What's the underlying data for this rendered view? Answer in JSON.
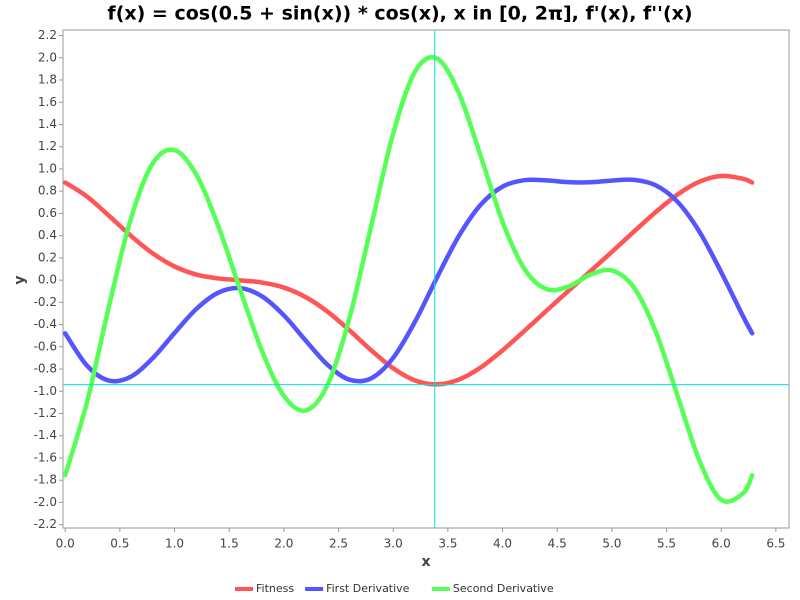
{
  "chart_data": {
    "type": "line",
    "title": "f(x) = cos(0.5 + sin(x)) * cos(x), x in [0, 2π], f'(x), f''(x)",
    "x_label": "x",
    "y_label": "y",
    "x": [
      0,
      0.2,
      0.4,
      0.6,
      0.8,
      1.0,
      1.2,
      1.4,
      1.6,
      1.8,
      2.0,
      2.2,
      2.4,
      2.6,
      2.8,
      3.0,
      3.2,
      3.4,
      3.6,
      3.8,
      4.0,
      4.2,
      4.4,
      4.6,
      4.8,
      5.0,
      5.2,
      5.4,
      5.6,
      5.8,
      6.0,
      6.2,
      6.283
    ],
    "series": [
      {
        "name": "Fitness",
        "color": "#ff5555",
        "values": [
          0.878,
          0.751,
          0.58,
          0.4,
          0.241,
          0.123,
          0.05,
          0.015,
          -0.002,
          -0.022,
          -0.067,
          -0.153,
          -0.284,
          -0.452,
          -0.632,
          -0.793,
          -0.903,
          -0.938,
          -0.895,
          -0.786,
          -0.632,
          -0.457,
          -0.277,
          -0.099,
          0.077,
          0.254,
          0.435,
          0.611,
          0.769,
          0.885,
          0.937,
          0.911,
          0.878
        ]
      },
      {
        "name": "First Derivative",
        "color": "#5555ff",
        "values": [
          -0.479,
          -0.77,
          -0.904,
          -0.869,
          -0.703,
          -0.476,
          -0.259,
          -0.113,
          -0.072,
          -0.146,
          -0.317,
          -0.544,
          -0.762,
          -0.896,
          -0.883,
          -0.699,
          -0.373,
          0.022,
          0.396,
          0.678,
          0.841,
          0.899,
          0.897,
          0.881,
          0.88,
          0.895,
          0.902,
          0.853,
          0.705,
          0.437,
          0.071,
          -0.326,
          -0.479
        ]
      },
      {
        "name": "Second Derivative",
        "color": "#55ff55",
        "values": [
          -1.755,
          -1.096,
          -0.237,
          0.55,
          1.05,
          1.17,
          0.947,
          0.486,
          -0.085,
          -0.638,
          -1.042,
          -1.173,
          -0.941,
          -0.341,
          0.492,
          1.32,
          1.877,
          1.994,
          1.684,
          1.116,
          0.525,
          0.101,
          -0.08,
          -0.059,
          0.047,
          0.087,
          -0.065,
          -0.461,
          -1.039,
          -1.623,
          -1.977,
          -1.917,
          -1.755
        ]
      }
    ],
    "xlim": [
      -0.02,
      6.62
    ],
    "ylim": [
      -2.23,
      2.25
    ],
    "xticks": [
      {
        "value": 0,
        "label": "0.0"
      },
      0.5,
      {
        "value": 1,
        "label": "1.0"
      },
      1.5,
      {
        "value": 2,
        "label": "2.0"
      },
      2.5,
      {
        "value": 3,
        "label": "3.0"
      },
      3.5,
      {
        "value": 4,
        "label": "4.0"
      },
      4.5,
      {
        "value": 5,
        "label": "5.0"
      },
      5.5,
      {
        "value": 6,
        "label": "6.0"
      },
      6.5
    ],
    "yticks": [
      {
        "value": -2.2,
        "label": "-2.2"
      },
      {
        "value": -2,
        "label": "-2.0"
      },
      -1.8,
      -1.6,
      -1.4,
      -1.2,
      {
        "value": -1,
        "label": "-1.0"
      },
      -0.8,
      -0.6,
      -0.4,
      -0.2,
      {
        "value": 0,
        "label": "0.0"
      },
      0.2,
      0.4,
      0.6,
      0.8,
      {
        "value": 1,
        "label": "1.0"
      },
      1.2,
      1.4,
      1.6,
      1.8,
      {
        "value": 2,
        "label": "2.0"
      },
      2.2
    ],
    "crosshair": {
      "x": 3.38,
      "y": -0.94,
      "color": "#00e5e5"
    },
    "legend": "bottom"
  }
}
